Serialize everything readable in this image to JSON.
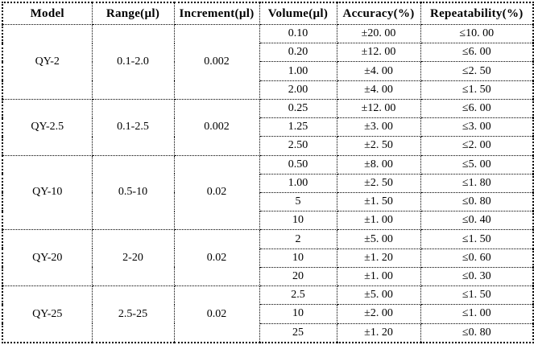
{
  "table": {
    "headers": [
      {
        "key": "model",
        "label": "Model"
      },
      {
        "key": "range",
        "label": "Range(µl)"
      },
      {
        "key": "increment",
        "label": "Increment(µl)"
      },
      {
        "key": "volume",
        "label": "Volume(µl)"
      },
      {
        "key": "accuracy",
        "label": "Accuracy(%)"
      },
      {
        "key": "repeatability",
        "label": "Repeatability(%)"
      }
    ],
    "groups": [
      {
        "model": "QY-2",
        "range": "0.1-2.0",
        "increment": "0.002",
        "rows": [
          {
            "volume": "0.10",
            "accuracy": "±20. 00",
            "repeatability": "≤10. 00"
          },
          {
            "volume": "0.20",
            "accuracy": "±12. 00",
            "repeatability": "≤6. 00"
          },
          {
            "volume": "1.00",
            "accuracy": "±4. 00",
            "repeatability": "≤2. 50"
          },
          {
            "volume": "2.00",
            "accuracy": "±4. 00",
            "repeatability": "≤1. 50"
          }
        ]
      },
      {
        "model": "QY-2.5",
        "range": "0.1-2.5",
        "increment": "0.002",
        "rows": [
          {
            "volume": "0.25",
            "accuracy": "±12. 00",
            "repeatability": "≤6. 00"
          },
          {
            "volume": "1.25",
            "accuracy": "±3. 00",
            "repeatability": "≤3. 00"
          },
          {
            "volume": "2.50",
            "accuracy": "±2. 50",
            "repeatability": "≤2. 00"
          }
        ]
      },
      {
        "model": "QY-10",
        "range": "0.5-10",
        "increment": "0.02",
        "rows": [
          {
            "volume": "0.50",
            "accuracy": "±8. 00",
            "repeatability": "≤5. 00"
          },
          {
            "volume": "1.00",
            "accuracy": "±2. 50",
            "repeatability": "≤1. 80"
          },
          {
            "volume": "5",
            "accuracy": "±1. 50",
            "repeatability": "≤0. 80"
          },
          {
            "volume": "10",
            "accuracy": "±1. 00",
            "repeatability": "≤0. 40"
          }
        ]
      },
      {
        "model": "QY-20",
        "range": "2-20",
        "increment": "0.02",
        "rows": [
          {
            "volume": "2",
            "accuracy": "±5. 00",
            "repeatability": "≤1. 50"
          },
          {
            "volume": "10",
            "accuracy": "±1. 20",
            "repeatability": "≤0. 60"
          },
          {
            "volume": "20",
            "accuracy": "±1. 00",
            "repeatability": "≤0. 30"
          }
        ]
      },
      {
        "model": "QY-25",
        "range": "2.5-25",
        "increment": "0.02",
        "rows": [
          {
            "volume": "2.5",
            "accuracy": "±5. 00",
            "repeatability": "≤1. 50"
          },
          {
            "volume": "10",
            "accuracy": "±2. 00",
            "repeatability": "≤1. 00"
          },
          {
            "volume": "25",
            "accuracy": "±1. 20",
            "repeatability": "≤0. 80"
          }
        ]
      }
    ]
  },
  "colors": {
    "background": "#ffffff",
    "border": "#000000",
    "text": "#000000"
  }
}
